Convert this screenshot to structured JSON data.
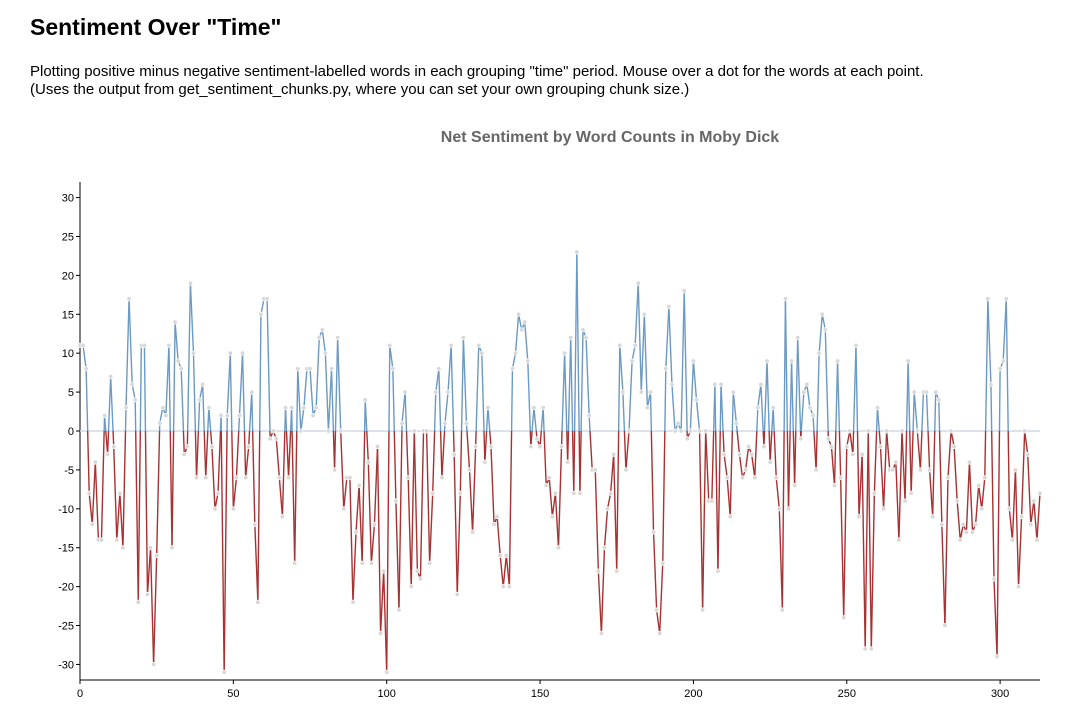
{
  "page": {
    "title": "Sentiment Over \"Time\"",
    "description": "Plotting positive minus negative sentiment-labelled words in each grouping \"time\" period. Mouse over a dot for the words at each point. (Uses the output from get_sentiment_chunks.py, where you can set your own grouping chunk size.)"
  },
  "colors": {
    "positive": "#6b9ac4",
    "negative": "#a83232",
    "zero_line": "#d4d9e6",
    "dot_fill": "#d8d8d8",
    "dot_stroke": "#ffffff",
    "title": "#666666"
  },
  "chart_data": {
    "type": "line",
    "title": "Net Sentiment by Word Counts in Moby Dick",
    "xlabel": "",
    "ylabel": "",
    "xlim": [
      0,
      313
    ],
    "ylim": [
      -32,
      32
    ],
    "x_ticks": [
      0,
      50,
      100,
      150,
      200,
      250,
      300
    ],
    "y_ticks": [
      30,
      25,
      20,
      15,
      10,
      5,
      0,
      -5,
      -10,
      -15,
      -20,
      -25,
      -30
    ],
    "grid": false,
    "legend": "none",
    "series": [
      {
        "values": [
          11,
          11,
          8,
          -8,
          -12,
          -4,
          -14,
          -14,
          2,
          -3,
          7,
          -2,
          -14,
          -8,
          -15,
          3,
          17,
          6,
          4,
          -22,
          11,
          11,
          -21,
          -15,
          -30,
          -16,
          1,
          3,
          2,
          11,
          -15,
          14,
          9,
          8,
          -3,
          -2,
          19,
          10,
          -6,
          4,
          6,
          -6,
          3,
          -2,
          -10,
          -8,
          2,
          -31,
          2,
          10,
          -10,
          -6,
          2,
          10,
          -6,
          -2,
          5,
          -12,
          -22,
          15,
          17,
          17,
          -1,
          0,
          -1,
          -6,
          -11,
          3,
          -6,
          3,
          -17,
          8,
          0,
          3,
          8,
          8,
          2,
          3,
          12,
          13,
          10,
          0,
          8,
          -5,
          12,
          0,
          -10,
          -6,
          -6,
          -22,
          -13,
          -7,
          -17,
          4,
          -4,
          -17,
          -12,
          -2,
          -26,
          -18,
          -31,
          11,
          8,
          -9,
          -23,
          1,
          5,
          -6,
          -20,
          0,
          -18,
          -19,
          0,
          0,
          -17,
          -8,
          5,
          8,
          -6,
          1,
          5,
          11,
          -3,
          -21,
          -8,
          12,
          1,
          -5,
          -13,
          -2,
          11,
          10,
          -4,
          3,
          -2,
          -12,
          -11,
          -16,
          -20,
          -16,
          -20,
          8,
          10,
          15,
          13,
          14,
          9,
          -2,
          3,
          -1,
          -2,
          3,
          -7,
          -6,
          -11,
          -8,
          -15,
          -2,
          10,
          -4,
          12,
          -8,
          23,
          -8,
          13,
          12,
          2,
          -5,
          -5,
          -18,
          -26,
          -15,
          -10,
          -8,
          -3,
          -18,
          11,
          5,
          -5,
          0,
          9,
          11,
          19,
          5,
          15,
          3,
          5,
          -13,
          -23,
          -26,
          -17,
          8,
          16,
          6,
          0,
          1,
          0,
          18,
          -1,
          0,
          9,
          4,
          0,
          -23,
          0,
          -9,
          -9,
          6,
          -18,
          6,
          -3,
          -6,
          -11,
          5,
          1,
          -3,
          -6,
          -5,
          -2,
          -3,
          -6,
          3,
          6,
          -2,
          9,
          -4,
          3,
          -6,
          -10,
          -23,
          17,
          -10,
          9,
          -7,
          12,
          -1,
          5,
          6,
          3,
          2,
          -5,
          10,
          15,
          13,
          -1,
          -2,
          -7,
          9,
          -6,
          -24,
          -2,
          0,
          -3,
          11,
          -11,
          -3,
          -28,
          0,
          -28,
          -8,
          3,
          -2,
          -10,
          0,
          -5,
          -5,
          -4,
          -14,
          0,
          -9,
          9,
          -8,
          5,
          0,
          -5,
          5,
          5,
          -5,
          -11,
          5,
          4,
          -12,
          -25,
          -6,
          0,
          -2,
          -9,
          -14,
          -12,
          -13,
          -4,
          -13,
          -12,
          -7,
          -10,
          -6,
          17,
          6,
          -19,
          -29,
          8,
          9,
          17,
          -10,
          -14,
          -5,
          -20,
          -11,
          0,
          -3,
          -12,
          -9,
          -14,
          -8
        ]
      }
    ]
  }
}
